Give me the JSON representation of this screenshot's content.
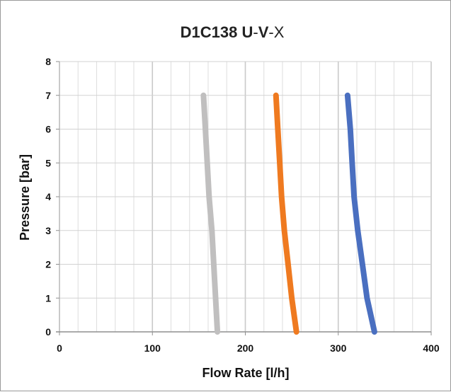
{
  "chart_data": {
    "type": "line",
    "title_parts": [
      {
        "text": "D1C138 ",
        "weight": "bold"
      },
      {
        "text": "U",
        "weight": "bold"
      },
      {
        "text": "-",
        "weight": "normal"
      },
      {
        "text": "V",
        "weight": "bold"
      },
      {
        "text": "-X",
        "weight": "normal"
      }
    ],
    "xlabel": "Flow Rate [l/h]",
    "ylabel": "Pressure [bar]",
    "xlim": [
      0,
      400
    ],
    "ylim": [
      0,
      8
    ],
    "x_ticks": [
      0,
      100,
      200,
      300,
      400
    ],
    "y_ticks": [
      0,
      1,
      2,
      3,
      4,
      5,
      6,
      7,
      8
    ],
    "x_minor_step": 20,
    "grid": true,
    "series": [
      {
        "color": "#c0bfbf",
        "points": [
          [
            155,
            7
          ],
          [
            157,
            6
          ],
          [
            159,
            5
          ],
          [
            161,
            4
          ],
          [
            164,
            3
          ],
          [
            166,
            2
          ],
          [
            168,
            1
          ],
          [
            170,
            0
          ]
        ]
      },
      {
        "color": "#ef7a20",
        "points": [
          [
            233,
            7
          ],
          [
            235,
            6
          ],
          [
            237,
            5
          ],
          [
            239,
            4
          ],
          [
            242,
            3
          ],
          [
            246,
            2
          ],
          [
            250,
            1
          ],
          [
            255,
            0
          ]
        ]
      },
      {
        "color": "#4a6fc0",
        "points": [
          [
            310,
            7
          ],
          [
            313,
            6
          ],
          [
            315,
            5
          ],
          [
            317,
            4
          ],
          [
            321,
            3
          ],
          [
            326,
            2
          ],
          [
            331,
            1
          ],
          [
            339,
            0
          ]
        ]
      }
    ]
  }
}
